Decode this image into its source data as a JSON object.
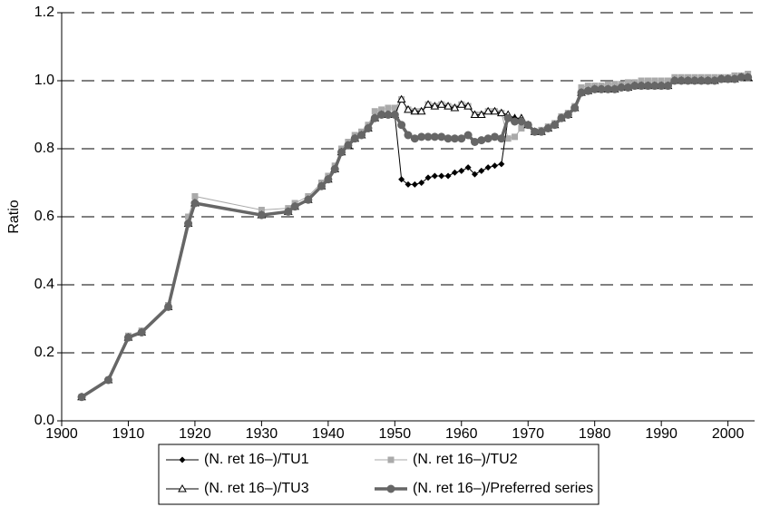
{
  "chart_data": {
    "type": "line",
    "y_label": "Ratio",
    "x": [
      1903,
      1907,
      1910,
      1912,
      1916,
      1919,
      1920,
      1930,
      1934,
      1935,
      1937,
      1939,
      1940,
      1941,
      1942,
      1943,
      1944,
      1945,
      1946,
      1947,
      1948,
      1949,
      1950,
      1951,
      1952,
      1953,
      1954,
      1955,
      1956,
      1957,
      1958,
      1959,
      1960,
      1961,
      1962,
      1963,
      1964,
      1965,
      1966,
      1967,
      1968,
      1969,
      1970,
      1971,
      1972,
      1973,
      1974,
      1975,
      1976,
      1977,
      1978,
      1979,
      1980,
      1981,
      1982,
      1983,
      1984,
      1985,
      1986,
      1987,
      1988,
      1989,
      1990,
      1991,
      1992,
      1993,
      1994,
      1995,
      1996,
      1997,
      1998,
      1999,
      2000,
      2001,
      2002,
      2003
    ],
    "xlim": [
      1900,
      2004
    ],
    "xticks": [
      1900,
      1910,
      1920,
      1930,
      1940,
      1950,
      1960,
      1970,
      1980,
      1990,
      2000
    ],
    "ylim": [
      0,
      1.2
    ],
    "yticks": [
      {
        "value": 0,
        "label": "0.0"
      },
      0.2,
      0.4,
      0.6,
      0.8,
      {
        "value": 1,
        "label": "1.0"
      },
      1.2
    ],
    "grid": true,
    "legend": "bottom",
    "series": [
      {
        "name": "(N. ret 16–)/TU2",
        "color": "#aaaaaa",
        "marker": "square",
        "values": [
          0.07,
          0.12,
          0.25,
          0.265,
          0.34,
          0.6,
          0.66,
          0.62,
          0.625,
          0.64,
          0.66,
          0.7,
          0.72,
          0.75,
          0.8,
          0.82,
          0.84,
          0.85,
          0.87,
          0.91,
          0.915,
          0.92,
          0.92,
          0.945,
          0.915,
          0.91,
          0.91,
          0.93,
          0.925,
          0.93,
          0.925,
          0.92,
          0.93,
          0.925,
          0.9,
          0.9,
          0.91,
          0.91,
          0.905,
          0.83,
          0.835,
          0.86,
          0.87,
          0.85,
          0.855,
          0.865,
          0.875,
          0.895,
          0.905,
          0.925,
          0.98,
          0.985,
          0.985,
          0.985,
          0.99,
          0.99,
          0.99,
          0.995,
          0.995,
          1.0,
          1.0,
          1.0,
          1.0,
          1.0,
          1.01,
          1.01,
          1.01,
          1.01,
          1.01,
          1.01,
          1.01,
          1.01,
          1.01,
          1.015,
          1.015,
          1.02
        ]
      },
      {
        "name": "(N. ret 16–)/TU3",
        "color": "#000000",
        "marker": "triangle",
        "values": [
          0.07,
          0.12,
          0.245,
          0.26,
          0.335,
          0.58,
          0.64,
          0.605,
          0.615,
          0.63,
          0.65,
          0.69,
          0.71,
          0.74,
          0.79,
          0.81,
          0.83,
          0.84,
          0.86,
          0.89,
          0.9,
          0.9,
          0.9,
          0.945,
          0.915,
          0.91,
          0.91,
          0.93,
          0.925,
          0.93,
          0.925,
          0.92,
          0.93,
          0.925,
          0.9,
          0.9,
          0.91,
          0.91,
          0.905,
          0.9,
          0.89,
          0.89,
          0.87,
          0.85,
          0.85,
          0.86,
          0.87,
          0.89,
          0.9,
          0.92,
          0.965,
          0.97,
          0.975,
          0.975,
          0.975,
          0.975,
          0.98,
          0.98,
          0.985,
          0.985,
          0.985,
          0.985,
          0.985,
          0.985,
          1.0,
          1.0,
          1.0,
          1.0,
          1.0,
          1.0,
          1.0,
          1.005,
          1.005,
          1.005,
          1.01,
          1.01
        ]
      },
      {
        "name": "(N. ret 16–)/TU1",
        "color": "#000000",
        "marker": "diamond",
        "values": [
          0.07,
          0.12,
          0.245,
          0.26,
          0.335,
          0.58,
          0.64,
          0.605,
          0.615,
          0.63,
          0.65,
          0.69,
          0.71,
          0.74,
          0.79,
          0.81,
          0.83,
          0.84,
          0.86,
          0.89,
          0.9,
          0.9,
          0.9,
          0.71,
          0.695,
          0.695,
          0.7,
          0.715,
          0.72,
          0.72,
          0.72,
          0.73,
          0.735,
          0.745,
          0.725,
          0.735,
          0.745,
          0.75,
          0.755,
          0.89,
          0.89,
          0.885,
          0.87,
          0.85,
          0.85,
          0.86,
          0.87,
          0.89,
          0.9,
          0.92,
          0.965,
          0.97,
          0.975,
          0.975,
          0.975,
          0.975,
          0.98,
          0.98,
          0.985,
          0.985,
          0.985,
          0.985,
          0.985,
          0.985,
          1.0,
          1.0,
          1.0,
          1.0,
          1.0,
          1.0,
          1.0,
          1.005,
          1.005,
          1.005,
          1.01,
          1.01
        ]
      },
      {
        "name": "(N. ret 16–)/Preferred series",
        "color": "#666666",
        "marker": "circle",
        "values": [
          0.07,
          0.12,
          0.245,
          0.26,
          0.335,
          0.58,
          0.64,
          0.605,
          0.615,
          0.63,
          0.65,
          0.69,
          0.71,
          0.74,
          0.79,
          0.81,
          0.83,
          0.84,
          0.86,
          0.89,
          0.9,
          0.9,
          0.9,
          0.87,
          0.84,
          0.83,
          0.835,
          0.835,
          0.835,
          0.835,
          0.83,
          0.83,
          0.83,
          0.84,
          0.82,
          0.825,
          0.83,
          0.835,
          0.83,
          0.89,
          0.88,
          0.88,
          0.87,
          0.85,
          0.85,
          0.86,
          0.87,
          0.89,
          0.9,
          0.92,
          0.965,
          0.97,
          0.975,
          0.975,
          0.975,
          0.975,
          0.98,
          0.98,
          0.985,
          0.985,
          0.985,
          0.985,
          0.985,
          0.985,
          1.0,
          1.0,
          1.0,
          1.0,
          1.0,
          1.0,
          1.0,
          1.005,
          1.005,
          1.005,
          1.01,
          1.01
        ]
      }
    ]
  }
}
